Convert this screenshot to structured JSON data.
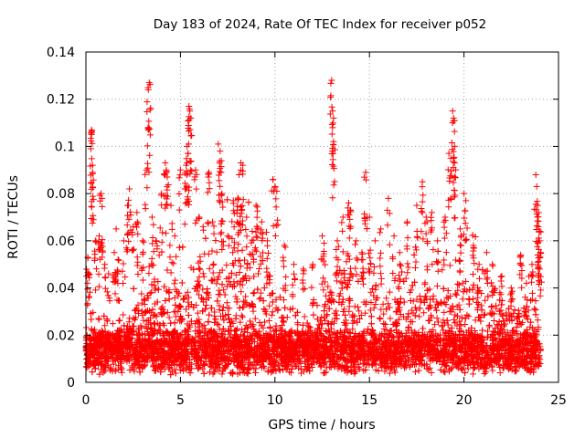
{
  "chart_data": {
    "type": "scatter",
    "title": "Day 183 of 2024, Rate Of TEC Index for receiver p052",
    "xlabel": "GPS time / hours",
    "ylabel": "ROTI / TECUs",
    "xlim": [
      0,
      25
    ],
    "ylim": [
      0,
      0.14
    ],
    "x_ticks": [
      "0",
      "5",
      "10",
      "15",
      "20",
      "25"
    ],
    "x_tick_values": [
      0,
      5,
      10,
      15,
      20,
      25
    ],
    "y_ticks": [
      "0",
      "0.02",
      "0.04",
      "0.06",
      "0.08",
      "0.1",
      "0.12",
      "0.14"
    ],
    "y_tick_values": [
      0,
      0.02,
      0.04,
      0.06,
      0.08,
      0.1,
      0.12,
      0.14
    ],
    "grid": true,
    "marker": "+",
    "color": "#ff0000",
    "series": [
      {
        "name": "p052",
        "points": [
          [
            0.1,
            0.053
          ],
          [
            0.15,
            0.046
          ],
          [
            0.3,
            0.107
          ],
          [
            0.3,
            0.106
          ],
          [
            0.35,
            0.092
          ],
          [
            0.35,
            0.089
          ],
          [
            0.5,
            0.06
          ],
          [
            0.7,
            0.062
          ],
          [
            0.8,
            0.08
          ],
          [
            0.85,
            0.078
          ],
          [
            1.0,
            0.05
          ],
          [
            1.2,
            0.046
          ],
          [
            1.5,
            0.055
          ],
          [
            1.6,
            0.065
          ],
          [
            1.7,
            0.052
          ],
          [
            2.0,
            0.06
          ],
          [
            2.2,
            0.075
          ],
          [
            2.3,
            0.082
          ],
          [
            2.5,
            0.066
          ],
          [
            2.7,
            0.072
          ],
          [
            3.0,
            0.06
          ],
          [
            3.2,
            0.09
          ],
          [
            3.3,
            0.108
          ],
          [
            3.3,
            0.124
          ],
          [
            3.35,
            0.127
          ],
          [
            3.5,
            0.07
          ],
          [
            3.7,
            0.06
          ],
          [
            4.0,
            0.08
          ],
          [
            4.2,
            0.093
          ],
          [
            4.25,
            0.09
          ],
          [
            4.3,
            0.087
          ],
          [
            4.5,
            0.075
          ],
          [
            4.7,
            0.062
          ],
          [
            5.0,
            0.09
          ],
          [
            5.3,
            0.092
          ],
          [
            5.35,
            0.1
          ],
          [
            5.4,
            0.097
          ],
          [
            5.45,
            0.117
          ],
          [
            5.5,
            0.115
          ],
          [
            5.55,
            0.112
          ],
          [
            5.8,
            0.09
          ],
          [
            6.0,
            0.07
          ],
          [
            6.2,
            0.066
          ],
          [
            6.5,
            0.089
          ],
          [
            6.7,
            0.068
          ],
          [
            7.0,
            0.101
          ],
          [
            7.1,
            0.098
          ],
          [
            7.2,
            0.08
          ],
          [
            7.5,
            0.062
          ],
          [
            7.8,
            0.077
          ],
          [
            8.0,
            0.073
          ],
          [
            8.1,
            0.088
          ],
          [
            8.2,
            0.093
          ],
          [
            8.3,
            0.092
          ],
          [
            8.5,
            0.07
          ],
          [
            8.8,
            0.064
          ],
          [
            9.0,
            0.075
          ],
          [
            9.3,
            0.068
          ],
          [
            9.6,
            0.06
          ],
          [
            9.9,
            0.086
          ],
          [
            10.0,
            0.083
          ],
          [
            10.1,
            0.081
          ],
          [
            10.5,
            0.058
          ],
          [
            11.0,
            0.05
          ],
          [
            11.5,
            0.048
          ],
          [
            12.0,
            0.05
          ],
          [
            12.5,
            0.062
          ],
          [
            12.6,
            0.059
          ],
          [
            13.0,
            0.128
          ],
          [
            13.05,
            0.115
          ],
          [
            13.1,
            0.112
          ],
          [
            13.1,
            0.102
          ],
          [
            13.3,
            0.06
          ],
          [
            13.6,
            0.07
          ],
          [
            13.9,
            0.076
          ],
          [
            14.0,
            0.073
          ],
          [
            14.3,
            0.06
          ],
          [
            14.6,
            0.055
          ],
          [
            14.8,
            0.089
          ],
          [
            15.0,
            0.07
          ],
          [
            15.3,
            0.06
          ],
          [
            15.6,
            0.065
          ],
          [
            16.0,
            0.078
          ],
          [
            16.3,
            0.062
          ],
          [
            16.6,
            0.055
          ],
          [
            17.0,
            0.068
          ],
          [
            17.5,
            0.075
          ],
          [
            17.8,
            0.085
          ],
          [
            18.0,
            0.07
          ],
          [
            18.3,
            0.072
          ],
          [
            18.6,
            0.06
          ],
          [
            19.0,
            0.07
          ],
          [
            19.2,
            0.097
          ],
          [
            19.3,
            0.095
          ],
          [
            19.4,
            0.115
          ],
          [
            19.45,
            0.112
          ],
          [
            19.5,
            0.1
          ],
          [
            19.5,
            0.093
          ],
          [
            19.8,
            0.065
          ],
          [
            20.0,
            0.08
          ],
          [
            20.1,
            0.077
          ],
          [
            20.5,
            0.058
          ],
          [
            20.8,
            0.05
          ],
          [
            21.2,
            0.055
          ],
          [
            21.5,
            0.05
          ],
          [
            22.0,
            0.045
          ],
          [
            22.5,
            0.04
          ],
          [
            23.0,
            0.054
          ],
          [
            23.3,
            0.042
          ],
          [
            23.6,
            0.05
          ],
          [
            23.8,
            0.088
          ],
          [
            23.85,
            0.083
          ],
          [
            23.9,
            0.075
          ],
          [
            23.95,
            0.072
          ],
          [
            24.0,
            0.064
          ],
          [
            24.0,
            0.06
          ],
          [
            24.05,
            0.055
          ]
        ],
        "dense_band": {
          "x_range": [
            0,
            24.05
          ],
          "y_min": 0.003,
          "y_typical": 0.015,
          "y_upper_typical": 0.045
        }
      }
    ]
  }
}
